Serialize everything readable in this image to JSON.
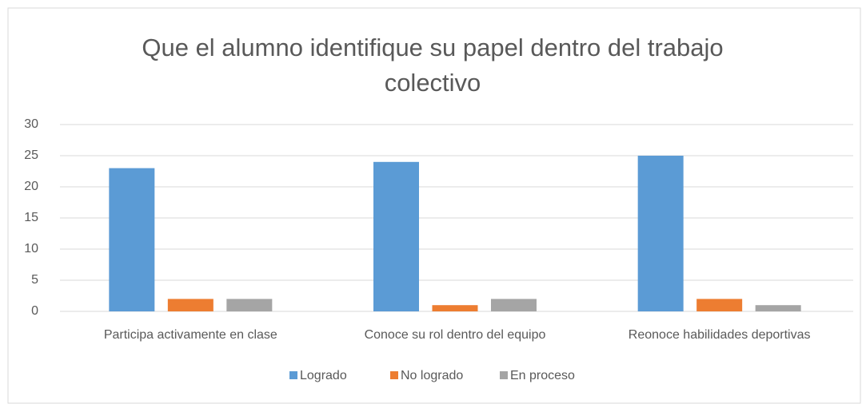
{
  "chart_data": {
    "type": "bar",
    "title": "Que el alumno identifique su papel dentro del trabajo colectivo",
    "categories": [
      "Participa activamente en clase",
      "Conoce su rol dentro del equipo",
      "Reonoce habilidades deportivas"
    ],
    "series": [
      {
        "name": "Logrado",
        "color": "#5b9bd5",
        "values": [
          23,
          24,
          25
        ]
      },
      {
        "name": "No logrado",
        "color": "#ed7d31",
        "values": [
          2,
          1,
          2
        ]
      },
      {
        "name": "En proceso",
        "color": "#a5a5a5",
        "values": [
          2,
          2,
          1
        ]
      }
    ],
    "ylim": [
      0,
      30
    ],
    "yticks": [
      0,
      5,
      10,
      15,
      20,
      25,
      30
    ],
    "grid": true,
    "legend": "bottom"
  }
}
